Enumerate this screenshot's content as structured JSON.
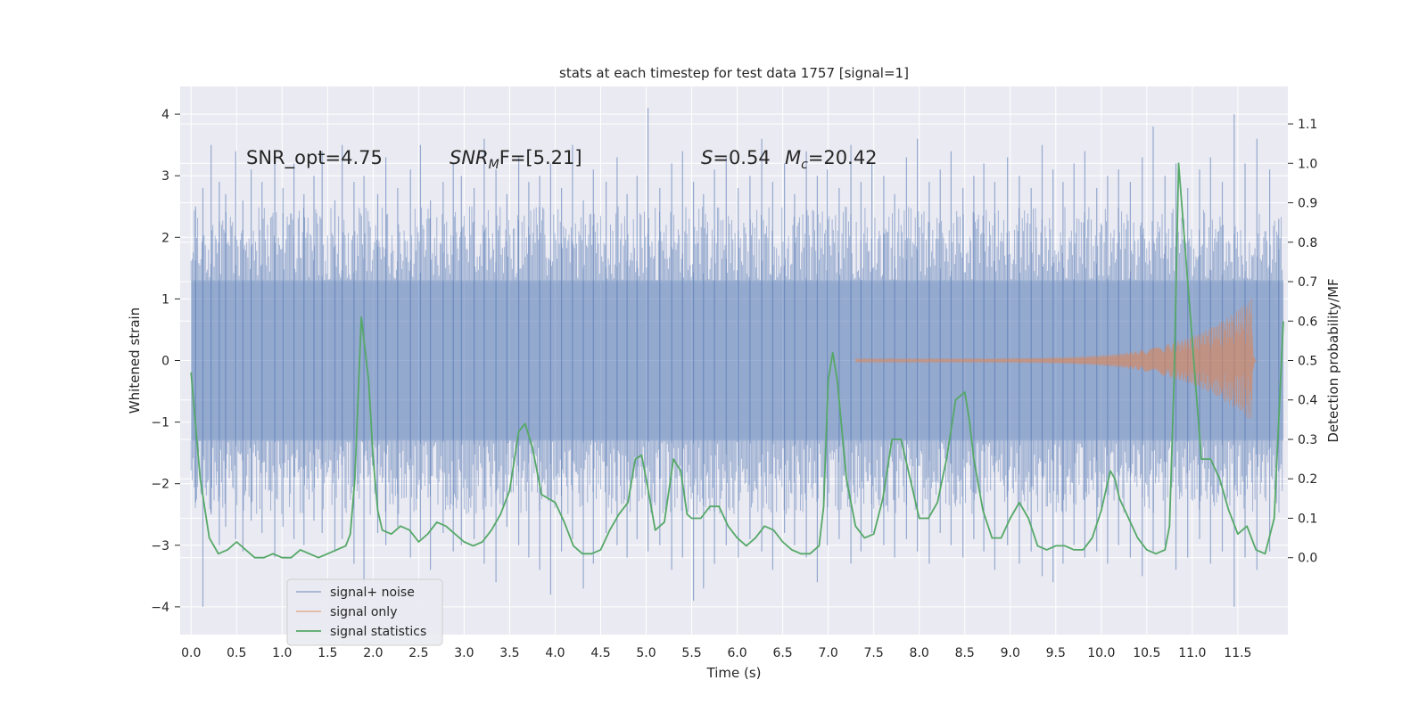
{
  "chart_data": {
    "type": "line",
    "title": "stats at each timestep for test data 1757 [signal=1]",
    "xlabel": "Time (s)",
    "ylabel_left": "Whitened strain",
    "ylabel_right": "Detection probability/MF",
    "xlim": [
      -0.12,
      12.05
    ],
    "ylim_left": [
      -4.45,
      4.45
    ],
    "ylim_right": [
      -0.195,
      1.195
    ],
    "xticks": [
      "0.0",
      "0.5",
      "1.0",
      "1.5",
      "2.0",
      "2.5",
      "3.0",
      "3.5",
      "4.0",
      "4.5",
      "5.0",
      "5.5",
      "6.0",
      "6.5",
      "7.0",
      "7.5",
      "8.0",
      "8.5",
      "9.0",
      "9.5",
      "10.0",
      "10.5",
      "11.0",
      "11.5"
    ],
    "yticks_left": [
      "4",
      "3",
      "2",
      "1",
      "0",
      "−1",
      "−2",
      "−3",
      "−4"
    ],
    "yticks_right": [
      "1.1",
      "1.0",
      "0.9",
      "0.8",
      "0.7",
      "0.6",
      "0.5",
      "0.4",
      "0.3",
      "0.2",
      "0.1",
      "0.0"
    ],
    "grid": true,
    "legend_position": "lower-left",
    "annotations": {
      "snr_opt": "SNR_opt=4.75",
      "snr_mf_name": "SNR",
      "snr_mf_sub": "M",
      "snr_mf_rest": "F=[5.21]",
      "s_name": "S",
      "s_value": "=0.54",
      "mc_name": "M",
      "mc_sub": "c",
      "mc_value": "=20.42"
    },
    "series": [
      {
        "name": "signal+ noise",
        "color": "#4c72b0",
        "axis": "left",
        "description_values": {
          "t_start": 0.0,
          "t_end": 12.0,
          "dense_band": [
            -1.3,
            1.3
          ],
          "spikes_t": [
            0.05,
            0.13,
            0.22,
            0.31,
            0.38,
            0.49,
            0.57,
            0.66,
            0.78,
            0.92,
            1.01,
            1.13,
            1.24,
            1.35,
            1.44,
            1.58,
            1.66,
            1.79,
            1.9,
            2.05,
            2.14,
            2.27,
            2.41,
            2.52,
            2.63,
            2.77,
            2.88,
            2.97,
            3.11,
            3.22,
            3.35,
            3.47,
            3.6,
            3.71,
            3.83,
            3.95,
            4.07,
            4.19,
            4.31,
            4.42,
            4.56,
            4.68,
            4.79,
            4.9,
            5.02,
            5.15,
            5.28,
            5.4,
            5.52,
            5.63,
            5.75,
            5.88,
            6.01,
            6.14,
            6.27,
            6.39,
            6.52,
            6.63,
            6.76,
            6.88,
            6.99,
            7.12,
            7.25,
            7.36,
            7.48,
            7.61,
            7.73,
            7.86,
            7.98,
            8.11,
            8.23,
            8.35,
            8.48,
            8.6,
            8.71,
            8.83,
            8.97,
            9.1,
            9.23,
            9.35,
            9.47,
            9.58,
            9.7,
            9.82,
            9.95,
            10.07,
            10.19,
            10.32,
            10.45,
            10.57,
            10.7,
            10.82,
            10.95,
            11.08,
            11.2,
            11.33,
            11.46,
            11.58,
            11.71,
            11.85,
            11.95
          ],
          "spikes_hi": [
            2.5,
            2.8,
            3.5,
            2.9,
            2.7,
            3.4,
            2.6,
            3.1,
            2.9,
            3.3,
            2.8,
            3.2,
            2.7,
            3.0,
            3.4,
            2.6,
            3.5,
            2.9,
            3.0,
            2.7,
            3.3,
            2.8,
            3.1,
            3.5,
            2.6,
            2.9,
            3.2,
            3.0,
            2.8,
            3.6,
            3.1,
            2.7,
            3.3,
            2.9,
            3.0,
            3.2,
            2.8,
            3.5,
            2.6,
            3.1,
            2.9,
            3.3,
            2.7,
            3.0,
            4.1,
            2.8,
            3.2,
            3.4,
            2.9,
            2.7,
            3.1,
            3.3,
            2.8,
            3.0,
            3.6,
            2.9,
            3.2,
            2.7,
            3.4,
            3.0,
            3.1,
            2.8,
            3.5,
            2.9,
            3.2,
            3.0,
            2.7,
            3.3,
            3.6,
            2.9,
            3.1,
            3.4,
            2.8,
            3.0,
            3.2,
            2.9,
            3.3,
            3.0,
            2.8,
            3.5,
            3.1,
            2.9,
            3.2,
            3.4,
            2.8,
            3.0,
            3.1,
            2.9,
            3.3,
            3.8,
            3.0,
            3.2,
            2.8,
            3.1,
            3.3,
            2.9,
            4.0,
            3.2,
            3.6,
            3.1,
            2.3
          ],
          "spikes_lo": [
            -2.3,
            -4.0,
            -2.5,
            -3.0,
            -2.7,
            -2.9,
            -3.1,
            -2.6,
            -2.8,
            -3.2,
            -2.7,
            -2.9,
            -3.0,
            -2.6,
            -2.8,
            -3.1,
            -2.9,
            -3.3,
            -3.6,
            -2.8,
            -3.0,
            -2.7,
            -3.2,
            -2.9,
            -3.4,
            -2.8,
            -3.1,
            -3.0,
            -2.9,
            -3.3,
            -3.6,
            -2.7,
            -3.0,
            -3.2,
            -3.4,
            -3.8,
            -3.1,
            -2.9,
            -3.7,
            -3.3,
            -2.8,
            -3.0,
            -3.2,
            -2.9,
            -3.1,
            -3.0,
            -3.4,
            -3.2,
            -3.9,
            -3.7,
            -3.3,
            -3.0,
            -3.2,
            -2.9,
            -3.1,
            -3.4,
            -2.8,
            -3.0,
            -3.2,
            -3.6,
            -3.0,
            -2.9,
            -3.3,
            -3.1,
            -2.8,
            -3.0,
            -3.2,
            -2.9,
            -3.1,
            -3.3,
            -2.8,
            -3.0,
            -3.2,
            -2.9,
            -3.1,
            -3.4,
            -3.0,
            -3.3,
            -3.1,
            -3.5,
            -3.6,
            -3.3,
            -3.0,
            -3.2,
            -3.1,
            -3.3,
            -3.0,
            -3.2,
            -3.5,
            -3.1,
            -3.0,
            -3.4,
            -3.2,
            -2.9,
            -3.3,
            -3.1,
            -4.0,
            -3.2,
            -3.4,
            -3.1,
            -1.8
          ]
        }
      },
      {
        "name": "signal only",
        "color": "#dd8452",
        "axis": "left",
        "description_values": {
          "t_start": 7.3,
          "t_peak": 11.65,
          "amp_start": 0.03,
          "amp_peak": 1.0,
          "t_end": 11.7
        }
      },
      {
        "name": "signal statistics",
        "color": "#55a868",
        "axis": "right",
        "x": [
          0.0,
          0.1,
          0.2,
          0.3,
          0.4,
          0.5,
          0.6,
          0.7,
          0.8,
          0.9,
          1.0,
          1.1,
          1.2,
          1.3,
          1.4,
          1.5,
          1.6,
          1.7,
          1.75,
          1.8,
          1.87,
          1.95,
          2.0,
          2.05,
          2.1,
          2.2,
          2.3,
          2.4,
          2.5,
          2.6,
          2.7,
          2.8,
          2.9,
          3.0,
          3.1,
          3.2,
          3.3,
          3.4,
          3.5,
          3.6,
          3.67,
          3.75,
          3.85,
          4.0,
          4.1,
          4.2,
          4.3,
          4.4,
          4.5,
          4.6,
          4.7,
          4.8,
          4.88,
          4.95,
          5.0,
          5.1,
          5.2,
          5.3,
          5.38,
          5.45,
          5.5,
          5.6,
          5.7,
          5.8,
          5.9,
          6.0,
          6.1,
          6.2,
          6.3,
          6.4,
          6.5,
          6.6,
          6.7,
          6.8,
          6.9,
          6.95,
          7.0,
          7.05,
          7.1,
          7.2,
          7.3,
          7.4,
          7.5,
          7.6,
          7.7,
          7.8,
          7.85,
          7.9,
          8.0,
          8.1,
          8.2,
          8.3,
          8.4,
          8.5,
          8.55,
          8.6,
          8.7,
          8.8,
          8.9,
          9.0,
          9.1,
          9.2,
          9.3,
          9.4,
          9.5,
          9.6,
          9.7,
          9.8,
          9.9,
          10.0,
          10.1,
          10.15,
          10.2,
          10.3,
          10.4,
          10.5,
          10.6,
          10.7,
          10.75,
          10.8,
          10.85,
          10.9,
          11.0,
          11.1,
          11.2,
          11.3,
          11.4,
          11.5,
          11.6,
          11.7,
          11.8,
          11.9,
          12.0
        ],
        "values": [
          0.47,
          0.2,
          0.05,
          0.01,
          0.02,
          0.04,
          0.02,
          0.0,
          0.0,
          0.01,
          0.0,
          0.0,
          0.02,
          0.01,
          0.0,
          0.01,
          0.02,
          0.03,
          0.06,
          0.2,
          0.61,
          0.45,
          0.25,
          0.12,
          0.07,
          0.06,
          0.08,
          0.07,
          0.04,
          0.06,
          0.09,
          0.08,
          0.06,
          0.04,
          0.03,
          0.04,
          0.07,
          0.11,
          0.17,
          0.32,
          0.34,
          0.28,
          0.16,
          0.14,
          0.09,
          0.03,
          0.01,
          0.01,
          0.02,
          0.07,
          0.11,
          0.14,
          0.25,
          0.26,
          0.2,
          0.07,
          0.09,
          0.25,
          0.22,
          0.11,
          0.1,
          0.1,
          0.13,
          0.13,
          0.08,
          0.05,
          0.03,
          0.05,
          0.08,
          0.07,
          0.04,
          0.02,
          0.01,
          0.01,
          0.03,
          0.13,
          0.45,
          0.52,
          0.45,
          0.2,
          0.08,
          0.05,
          0.06,
          0.15,
          0.3,
          0.3,
          0.25,
          0.2,
          0.1,
          0.1,
          0.14,
          0.25,
          0.4,
          0.42,
          0.35,
          0.25,
          0.12,
          0.05,
          0.05,
          0.1,
          0.14,
          0.1,
          0.03,
          0.02,
          0.03,
          0.03,
          0.02,
          0.02,
          0.05,
          0.12,
          0.22,
          0.2,
          0.15,
          0.1,
          0.05,
          0.02,
          0.01,
          0.02,
          0.08,
          0.45,
          1.0,
          0.85,
          0.55,
          0.25,
          0.25,
          0.2,
          0.12,
          0.06,
          0.08,
          0.02,
          0.01,
          0.1,
          0.6
        ]
      }
    ]
  }
}
